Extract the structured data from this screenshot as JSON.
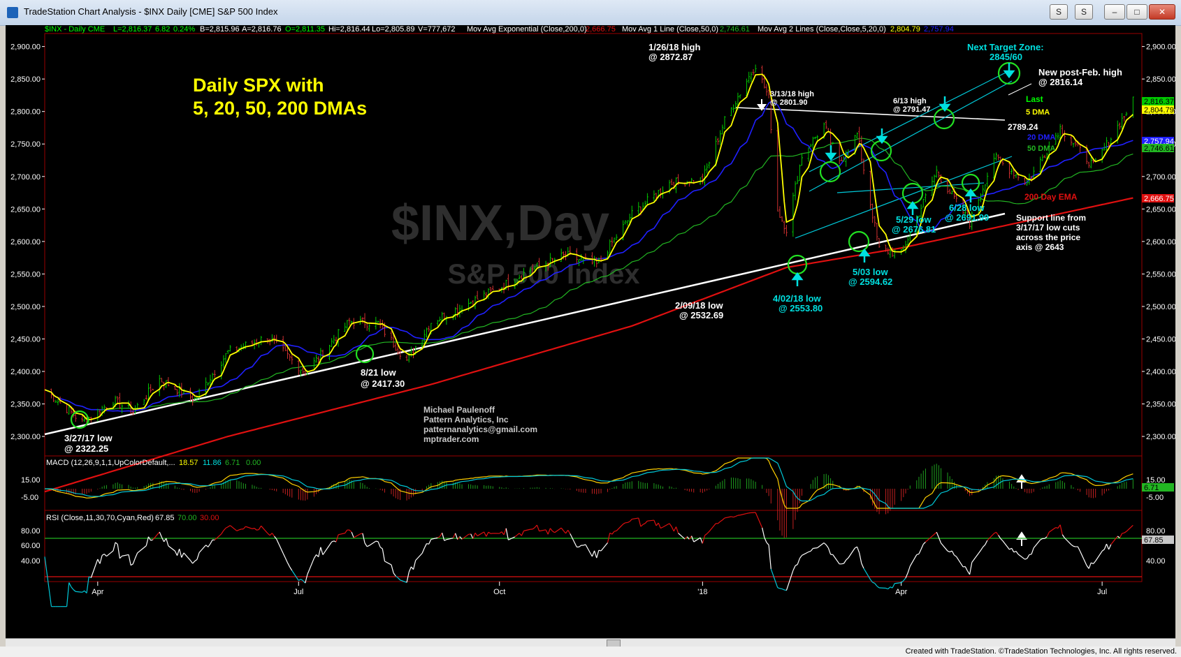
{
  "window": {
    "title": "TradeStation Chart Analysis - $INX Daily [CME] S&P 500 Index",
    "buttons": [
      "S",
      "S"
    ],
    "credit": "Created with TradeStation. ©TradeStation Technologies, Inc. All rights reserved."
  },
  "header": {
    "symbol": "$INX - Daily  CME",
    "last": "L=2,816.37",
    "change": "6.82",
    "pct": "0.24%",
    "bid": "B=2,815.96",
    "ask": "A=2,816.76",
    "open": "O=2,811.35",
    "hi": "Hi=2,816.44",
    "lo": "Lo=2,805.89",
    "vol": "V=777,672",
    "ema_label": "Mov Avg Exponential (Close,200,0)",
    "ema_val": "2,666.75",
    "ma1_label": "Mov Avg 1 Line (Close,50,0)",
    "ma1_val": "2,746.61",
    "ma2_label": "Mov Avg 2 Lines (Close,Close,5,20,0)",
    "ma2_v1": "2,804.79",
    "ma2_v2": "2,757.94"
  },
  "watermark": {
    "symbol": "$INX,Day",
    "name": "S&P 500 Index"
  },
  "annotations": {
    "headline": [
      "Daily SPX with",
      "5, 20, 50, 200 DMAs"
    ],
    "target_zone": [
      "Next Target Zone:",
      "2845/60"
    ],
    "new_high": [
      "New post-Feb. high",
      "@ 2816.14"
    ],
    "high_0126": [
      "1/26/18 high",
      "@ 2872.87"
    ],
    "high_0313": [
      "3/13/18 high",
      "@ 2801.90"
    ],
    "high_0613": [
      "6/13 high",
      "@ 2791.47"
    ],
    "level_2789": "2789.24",
    "low_0209": [
      "2/09/18 low",
      "@ 2532.69"
    ],
    "low_0402": [
      "4/02/18 low",
      "@ 2553.80"
    ],
    "low_0503": [
      "5/03 low",
      "@ 2594.62"
    ],
    "low_0529": [
      "5/29 low",
      "@ 2676.81"
    ],
    "low_0628": [
      "6/28 low",
      "@ 2691.99"
    ],
    "low_0821": [
      "8/21 low",
      "@ 2417.30"
    ],
    "low_0327": [
      "3/27/17 low",
      "@ 2322.25"
    ],
    "support": [
      "Support line from",
      "3/17/17 low cuts",
      "across the price",
      "axis @ 2643"
    ],
    "author": [
      "Michael Paulenoff",
      "Pattern Analytics, Inc",
      "patternanalytics@gmail.com",
      "mptrader.com"
    ],
    "legend_last": "Last",
    "legend_5": "5 DMA",
    "legend_20": "20 DMA",
    "legend_50": "50 DMA",
    "legend_200": "200 Day EMA"
  },
  "price_badges": [
    "2,816.37",
    "2,804.79",
    "2,757.94",
    "2,746.61",
    "2,666.75"
  ],
  "macd": {
    "label": "MACD (12,26,9,1,1,UpColorDefault,...",
    "v1": "18.57",
    "v2": "11.86",
    "v3": "6.71",
    "v4": "0.00",
    "ticks": [
      "15.00",
      "-5.00"
    ],
    "badge": "6.71"
  },
  "rsi": {
    "label": "RSI (Close,11,30,70,Cyan,Red)",
    "v1": "67.85",
    "v2": "70.00",
    "v3": "30.00",
    "ticks": [
      "80.00",
      "60.00",
      "40.00"
    ],
    "badge": "67.85"
  },
  "colors": {
    "price_up": "#00c800",
    "ma5": "#ffff00",
    "ma20": "#2020ff",
    "ma50": "#22b522",
    "ema200": "#e01010",
    "cyan": "#00e0e0",
    "white": "#ffffff"
  },
  "chart_data": {
    "type": "line",
    "title": "",
    "xlabel": "",
    "ylabel": "",
    "ylim": [
      2270,
      2920
    ],
    "yticks": [
      2300,
      2350,
      2400,
      2450,
      2500,
      2550,
      2600,
      2650,
      2700,
      2750,
      2800,
      2850,
      2900
    ],
    "ytick_labels": [
      "2,300.00",
      "2,350.00",
      "2,400.00",
      "2,450.00",
      "2,500.00",
      "2,550.00",
      "2,600.00",
      "2,650.00",
      "2,700.00",
      "2,750.00",
      "2,800.00",
      "2,850.00",
      "2,900.00"
    ],
    "xlim": [
      "2017-03-10",
      "2018-07-20"
    ],
    "xticks": [
      {
        "label": "Apr",
        "date": "2017-04-03"
      },
      {
        "label": "Jul",
        "date": "2017-07-03"
      },
      {
        "label": "Oct",
        "date": "2017-10-02"
      },
      {
        "label": "'18",
        "date": "2018-01-02"
      },
      {
        "label": "Apr",
        "date": "2018-04-02"
      },
      {
        "label": "Jul",
        "date": "2018-07-02"
      }
    ],
    "series": [
      {
        "name": "Last",
        "x": [
          "2017-03-10",
          "2017-03-27",
          "2017-04-10",
          "2017-04-19",
          "2017-05-01",
          "2017-05-17",
          "2017-06-01",
          "2017-06-19",
          "2017-07-06",
          "2017-07-26",
          "2017-08-08",
          "2017-08-21",
          "2017-09-01",
          "2017-09-15",
          "2017-10-02",
          "2017-10-16",
          "2017-11-01",
          "2017-11-15",
          "2017-12-01",
          "2017-12-18",
          "2018-01-02",
          "2018-01-12",
          "2018-01-26",
          "2018-02-01",
          "2018-02-05",
          "2018-02-09",
          "2018-02-16",
          "2018-02-26",
          "2018-03-05",
          "2018-03-13",
          "2018-03-23",
          "2018-04-02",
          "2018-04-18",
          "2018-05-03",
          "2018-05-14",
          "2018-05-29",
          "2018-06-13",
          "2018-06-28",
          "2018-07-06",
          "2018-07-16"
        ],
        "y": [
          2372,
          2322,
          2355,
          2338,
          2388,
          2357,
          2430,
          2453,
          2398,
          2477,
          2474,
          2417,
          2476,
          2500,
          2529,
          2557,
          2579,
          2564,
          2642,
          2690,
          2695,
          2786,
          2872,
          2821,
          2648,
          2619,
          2732,
          2779,
          2720,
          2765,
          2588,
          2581,
          2708,
          2629,
          2730,
          2690,
          2775,
          2716,
          2760,
          2816
        ]
      },
      {
        "name": "200 Day EMA",
        "x": [
          "2017-03-10",
          "2017-06-01",
          "2017-09-01",
          "2017-12-01",
          "2018-02-09",
          "2018-04-02",
          "2018-07-16"
        ],
        "y": [
          2215,
          2300,
          2380,
          2470,
          2560,
          2590,
          2667
        ]
      }
    ]
  }
}
